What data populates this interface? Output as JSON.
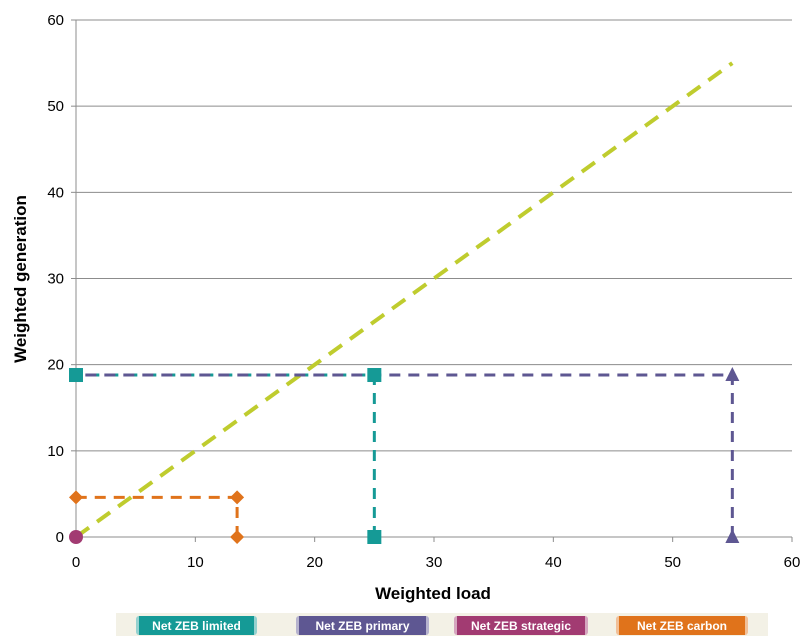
{
  "chart_data": {
    "type": "scatter",
    "title": "",
    "xlabel": "Weighted load",
    "ylabel": "Weighted generation",
    "xlim": [
      0,
      60
    ],
    "ylim": [
      0,
      60
    ],
    "xticks": [
      0,
      10,
      20,
      30,
      40,
      50,
      60
    ],
    "yticks": [
      0,
      10,
      20,
      30,
      40,
      50,
      60
    ],
    "grid": "horizontal",
    "legend_position": "bottom",
    "reference_line": {
      "x": [
        0,
        55
      ],
      "y": [
        0,
        55
      ],
      "color": "#bfcc2e"
    },
    "series": [
      {
        "name": "Net ZEB limited",
        "color": "#159a96",
        "marker": "square",
        "points": [
          [
            25,
            0
          ],
          [
            25,
            18.8
          ],
          [
            0,
            18.8
          ]
        ]
      },
      {
        "name": "Net ZEB primary",
        "color": "#5e5792",
        "marker": "triangle",
        "points": [
          [
            55,
            0
          ],
          [
            55,
            18.8
          ]
        ],
        "guide_to": [
          0,
          18.8
        ]
      },
      {
        "name": "Net ZEB strategic",
        "color": "#a23b72",
        "marker": "circle",
        "points": [
          [
            0,
            0
          ]
        ]
      },
      {
        "name": "Net ZEB carbon",
        "color": "#e0731b",
        "marker": "diamond",
        "points": [
          [
            13.5,
            0
          ],
          [
            13.5,
            4.6
          ],
          [
            0,
            4.6
          ]
        ]
      }
    ]
  }
}
